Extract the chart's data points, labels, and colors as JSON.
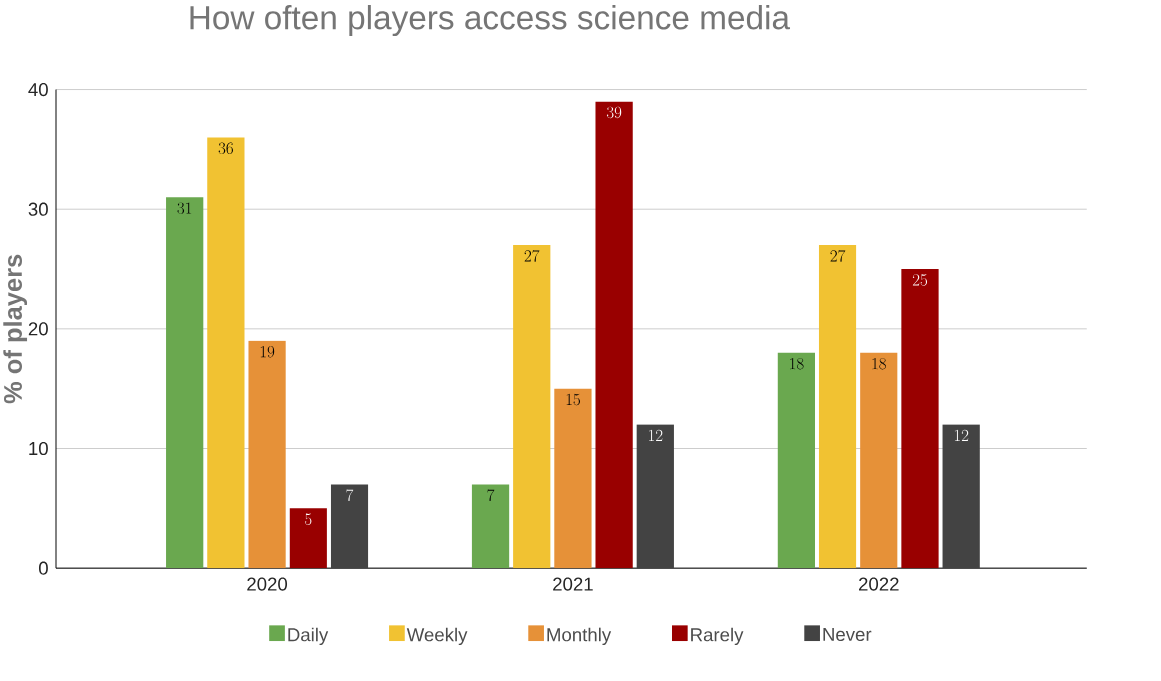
{
  "chart_data": {
    "type": "bar",
    "title": "How often players access science media",
    "ylabel": "% of players",
    "categories": [
      "2020",
      "2021",
      "2022"
    ],
    "series": [
      {
        "name": "Daily",
        "color": "#6aa84f",
        "values": [
          31,
          7,
          18
        ]
      },
      {
        "name": "Weekly",
        "color": "#f1c232",
        "values": [
          36,
          27,
          27
        ]
      },
      {
        "name": "Monthly",
        "color": "#e69138",
        "values": [
          19,
          15,
          18
        ]
      },
      {
        "name": "Rarely",
        "color": "#990000",
        "values": [
          5,
          39,
          25
        ]
      },
      {
        "name": "Never",
        "color": "#434343",
        "values": [
          7,
          12,
          12
        ]
      }
    ],
    "ylim": [
      0,
      40
    ],
    "yticks": [
      0,
      10,
      20,
      30,
      40
    ],
    "grid": "y",
    "legend": "bottom",
    "data_labels": true
  }
}
